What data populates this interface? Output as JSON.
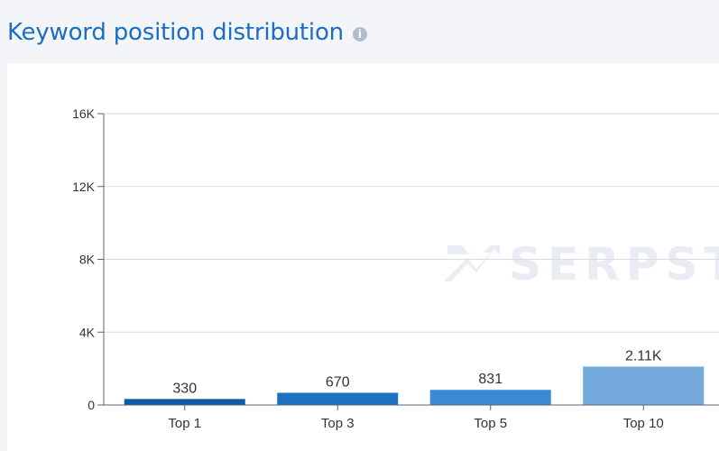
{
  "header": {
    "title": "Keyword position distribution",
    "info_glyph": "i",
    "info_icon": "info-icon"
  },
  "watermark": {
    "text": "SERPSTA",
    "color": "#e9ecf3"
  },
  "chart_data": {
    "type": "bar",
    "categories": [
      "Top 1",
      "Top 3",
      "Top 5",
      "Top 10"
    ],
    "values": [
      330,
      670,
      831,
      2110
    ],
    "data_labels": [
      "330",
      "670",
      "831",
      "2.11K"
    ],
    "colors": [
      "#0d5ba8",
      "#1b72c2",
      "#3a8ad6",
      "#74aadb"
    ],
    "ylim": [
      0,
      16000
    ],
    "yticks": [
      0,
      4000,
      8000,
      12000,
      16000
    ],
    "ytick_labels": [
      "0",
      "4K",
      "8K",
      "12K",
      "16K"
    ],
    "grid": true,
    "title": "",
    "xlabel": "",
    "ylabel": ""
  }
}
